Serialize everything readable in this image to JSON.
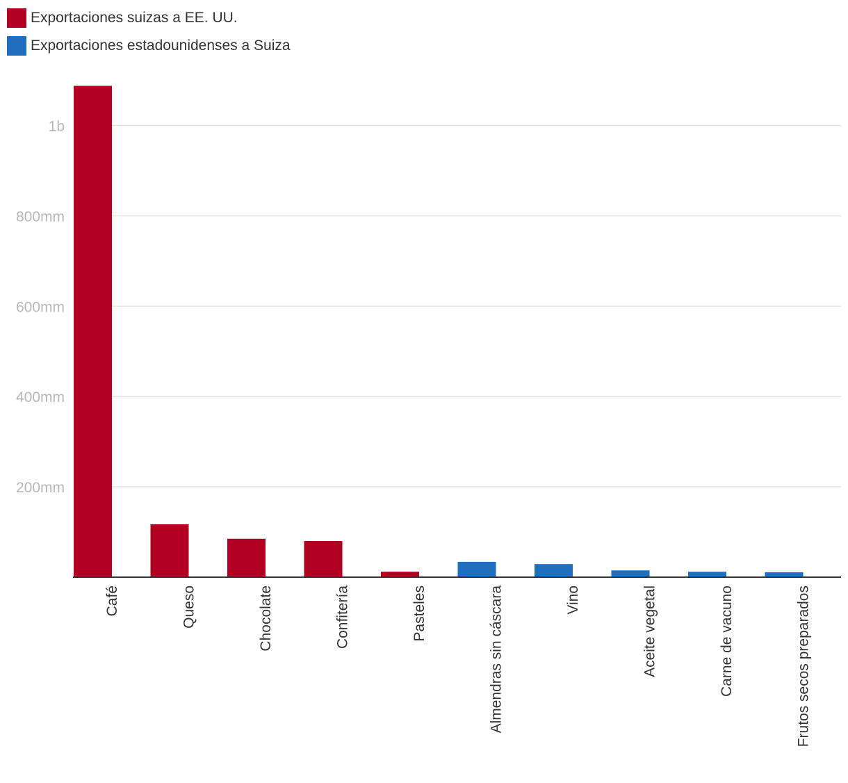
{
  "chart_data": {
    "type": "bar",
    "title": "",
    "xlabel": "",
    "ylabel": "",
    "ylim": [
      0,
      1090000000
    ],
    "yticks": [
      {
        "value": 200000000,
        "label": "200mm"
      },
      {
        "value": 400000000,
        "label": "400mm"
      },
      {
        "value": 600000000,
        "label": "600mm"
      },
      {
        "value": 800000000,
        "label": "800mm"
      },
      {
        "value": 1000000000,
        "label": "1b"
      }
    ],
    "categories": [
      "Café",
      "Queso",
      "Chocolate",
      "Confitería",
      "Pasteles",
      "Almendras sin cáscara",
      "Vino",
      "Aceite vegetal",
      "Carne de vacuno",
      "Frutos secos preparados"
    ],
    "series": [
      {
        "name": "Exportaciones suizas a EE. UU.",
        "color": "#b10021",
        "values": [
          1088000000,
          117000000,
          85000000,
          80000000,
          12000000,
          null,
          null,
          null,
          null,
          null
        ]
      },
      {
        "name": "Exportaciones estadounidenses a Suiza",
        "color": "#1f6fbe",
        "values": [
          null,
          null,
          null,
          null,
          null,
          34000000,
          29000000,
          15000000,
          12000000,
          11000000
        ]
      }
    ],
    "legend_position": "top-left",
    "grid": true
  }
}
